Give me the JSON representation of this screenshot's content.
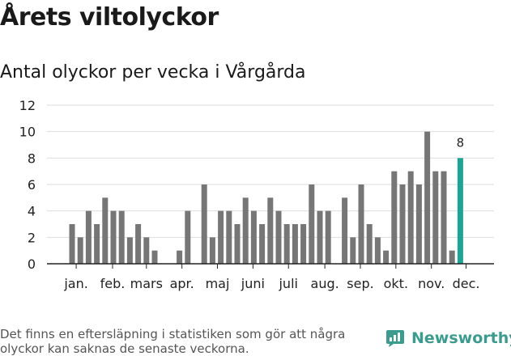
{
  "title": "Årets viltolyckor",
  "subtitle": "Antal olyckor per vecka i Vårgårda",
  "footnote": "Det finns en eftersläpning i statistiken som gör att några olyckor kan saknas de senaste veckorna.",
  "brand": {
    "name": "Newsworthy",
    "logo_icon": "bar-chart-logo-icon",
    "color": "#3a9c8e"
  },
  "colors": {
    "bar": "#767676",
    "highlight": "#1aa594",
    "grid": "#dddddd",
    "axis": "#222222"
  },
  "chart_data": {
    "type": "bar",
    "x": [
      1,
      2,
      3,
      4,
      5,
      6,
      7,
      8,
      9,
      10,
      11,
      12,
      13,
      14,
      15,
      16,
      17,
      18,
      19,
      20,
      21,
      22,
      23,
      24,
      25,
      26,
      27,
      28,
      29,
      30,
      31,
      32,
      33,
      34,
      35,
      36,
      37,
      38,
      39,
      40,
      41,
      42,
      43,
      44,
      45,
      46,
      47,
      48,
      49
    ],
    "values": [
      3,
      2,
      4,
      3,
      5,
      4,
      4,
      2,
      3,
      2,
      1,
      0,
      0,
      1,
      4,
      0,
      6,
      2,
      4,
      4,
      3,
      5,
      4,
      3,
      5,
      4,
      3,
      3,
      3,
      6,
      4,
      4,
      0,
      5,
      2,
      6,
      3,
      2,
      1,
      7,
      6,
      7,
      6,
      10,
      7,
      7,
      1,
      8,
      null
    ],
    "highlight_index": 47,
    "highlight_label": "8",
    "yticks": [
      0,
      2,
      4,
      6,
      8,
      10,
      12
    ],
    "ylim": [
      0,
      12
    ],
    "xlabel": "",
    "ylabel": "",
    "month_labels": [
      {
        "label": "jan.",
        "at": 1.5
      },
      {
        "label": "feb.",
        "at": 5.9
      },
      {
        "label": "mars",
        "at": 10
      },
      {
        "label": "apr.",
        "at": 14.3
      },
      {
        "label": "maj",
        "at": 18.6
      },
      {
        "label": "juni",
        "at": 22.9
      },
      {
        "label": "juli",
        "at": 27.2
      },
      {
        "label": "aug.",
        "at": 31.6
      },
      {
        "label": "sep.",
        "at": 35.9
      },
      {
        "label": "okt.",
        "at": 40.2
      },
      {
        "label": "nov.",
        "at": 44.5
      },
      {
        "label": "dec.",
        "at": 48.7
      }
    ],
    "grid": true
  }
}
